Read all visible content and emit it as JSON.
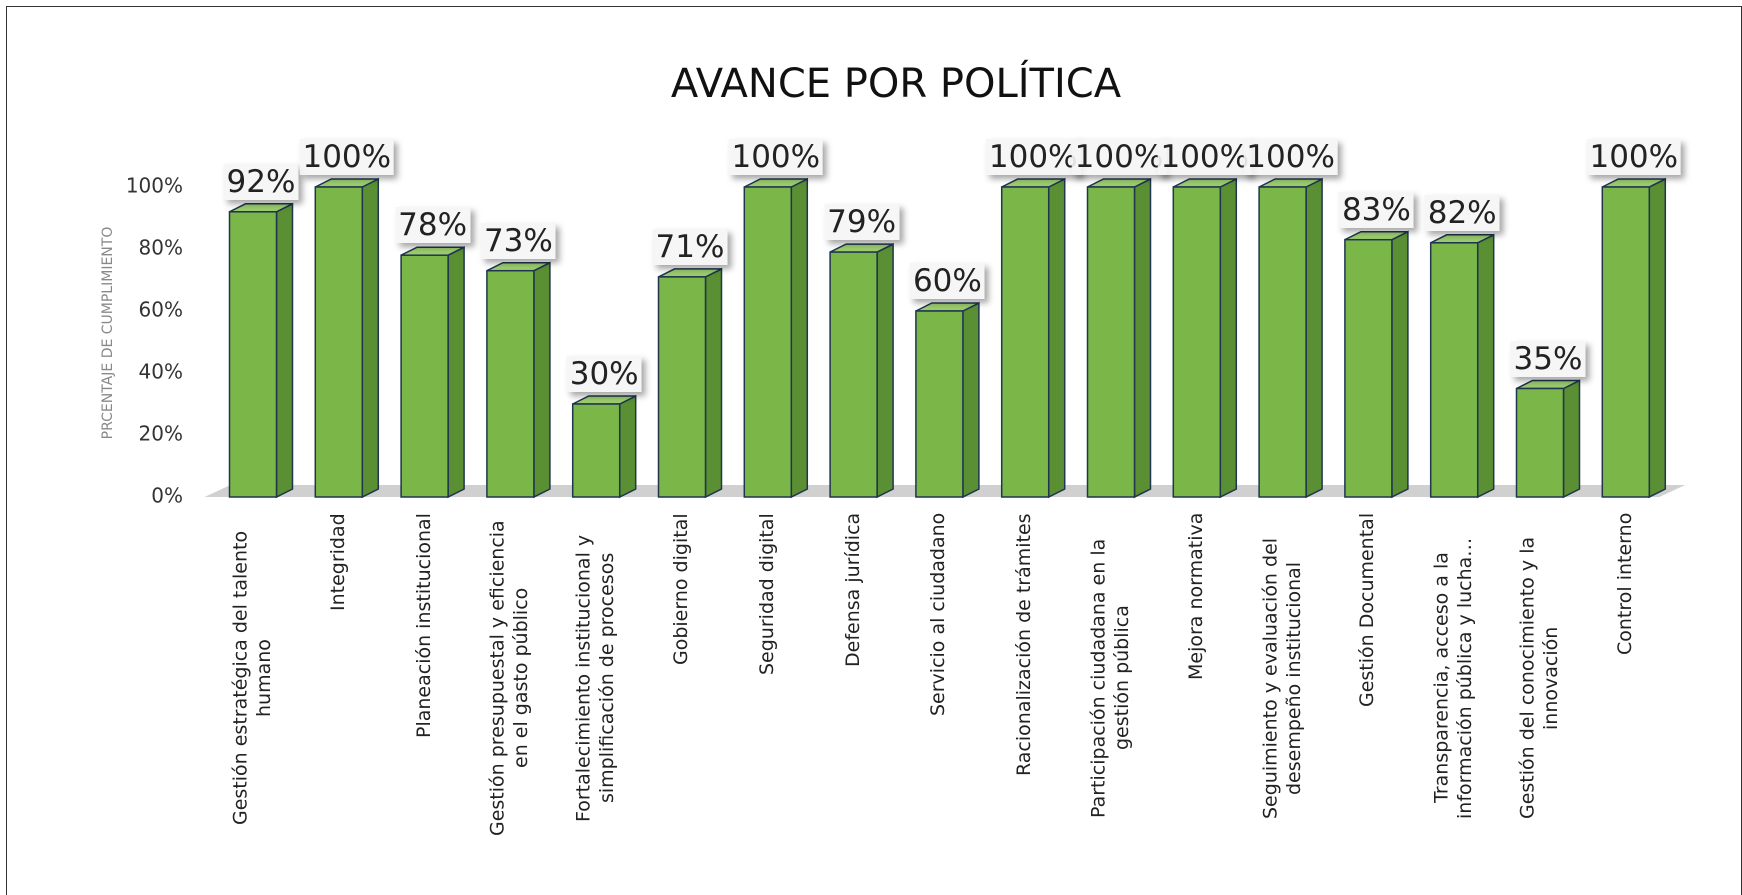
{
  "chart_data": {
    "type": "bar",
    "title": "AVANCE POR POLÍTICA",
    "ylabel": "PRCENTAJE DE CUMPLIMIENTO",
    "categories": [
      "Gestión estratégica del talento humano",
      "Integridad",
      "Planeación institucional",
      "Gestión presupuestal y eficiencia en el gasto público",
      "Fortalecimiento institucional y simplificación de procesos",
      "Gobierno digital",
      "Seguridad digital",
      "Defensa jurídica",
      "Servicio al ciudadano",
      "Racionalización de trámites",
      "Participación ciudadana en la gestión pública",
      "Mejora normativa",
      "Seguimiento y evaluación del desempeño institucional",
      "Gestión Documental",
      "Transparencia, acceso a la información pública y lucha…",
      "Gestión del conocimiento y la innovación",
      "Control interno"
    ],
    "values": [
      92,
      100,
      78,
      73,
      30,
      71,
      100,
      79,
      60,
      100,
      100,
      100,
      100,
      83,
      82,
      35,
      100
    ],
    "value_labels": [
      "92%",
      "100%",
      "78%",
      "73%",
      "30%",
      "71%",
      "100%",
      "79%",
      "60%",
      "100%",
      "100%",
      "100%",
      "100%",
      "83%",
      "82%",
      "35%",
      "100%"
    ],
    "color": "#7ab648",
    "ylim": [
      0,
      100
    ],
    "yticks": [
      {
        "value": 0,
        "label": "0%"
      },
      {
        "value": 20,
        "label": "20%"
      },
      {
        "value": 40,
        "label": "40%"
      },
      {
        "value": 60,
        "label": "60%"
      },
      {
        "value": 80,
        "label": "80%"
      },
      {
        "value": 100,
        "label": "100%"
      }
    ],
    "grid": false
  }
}
